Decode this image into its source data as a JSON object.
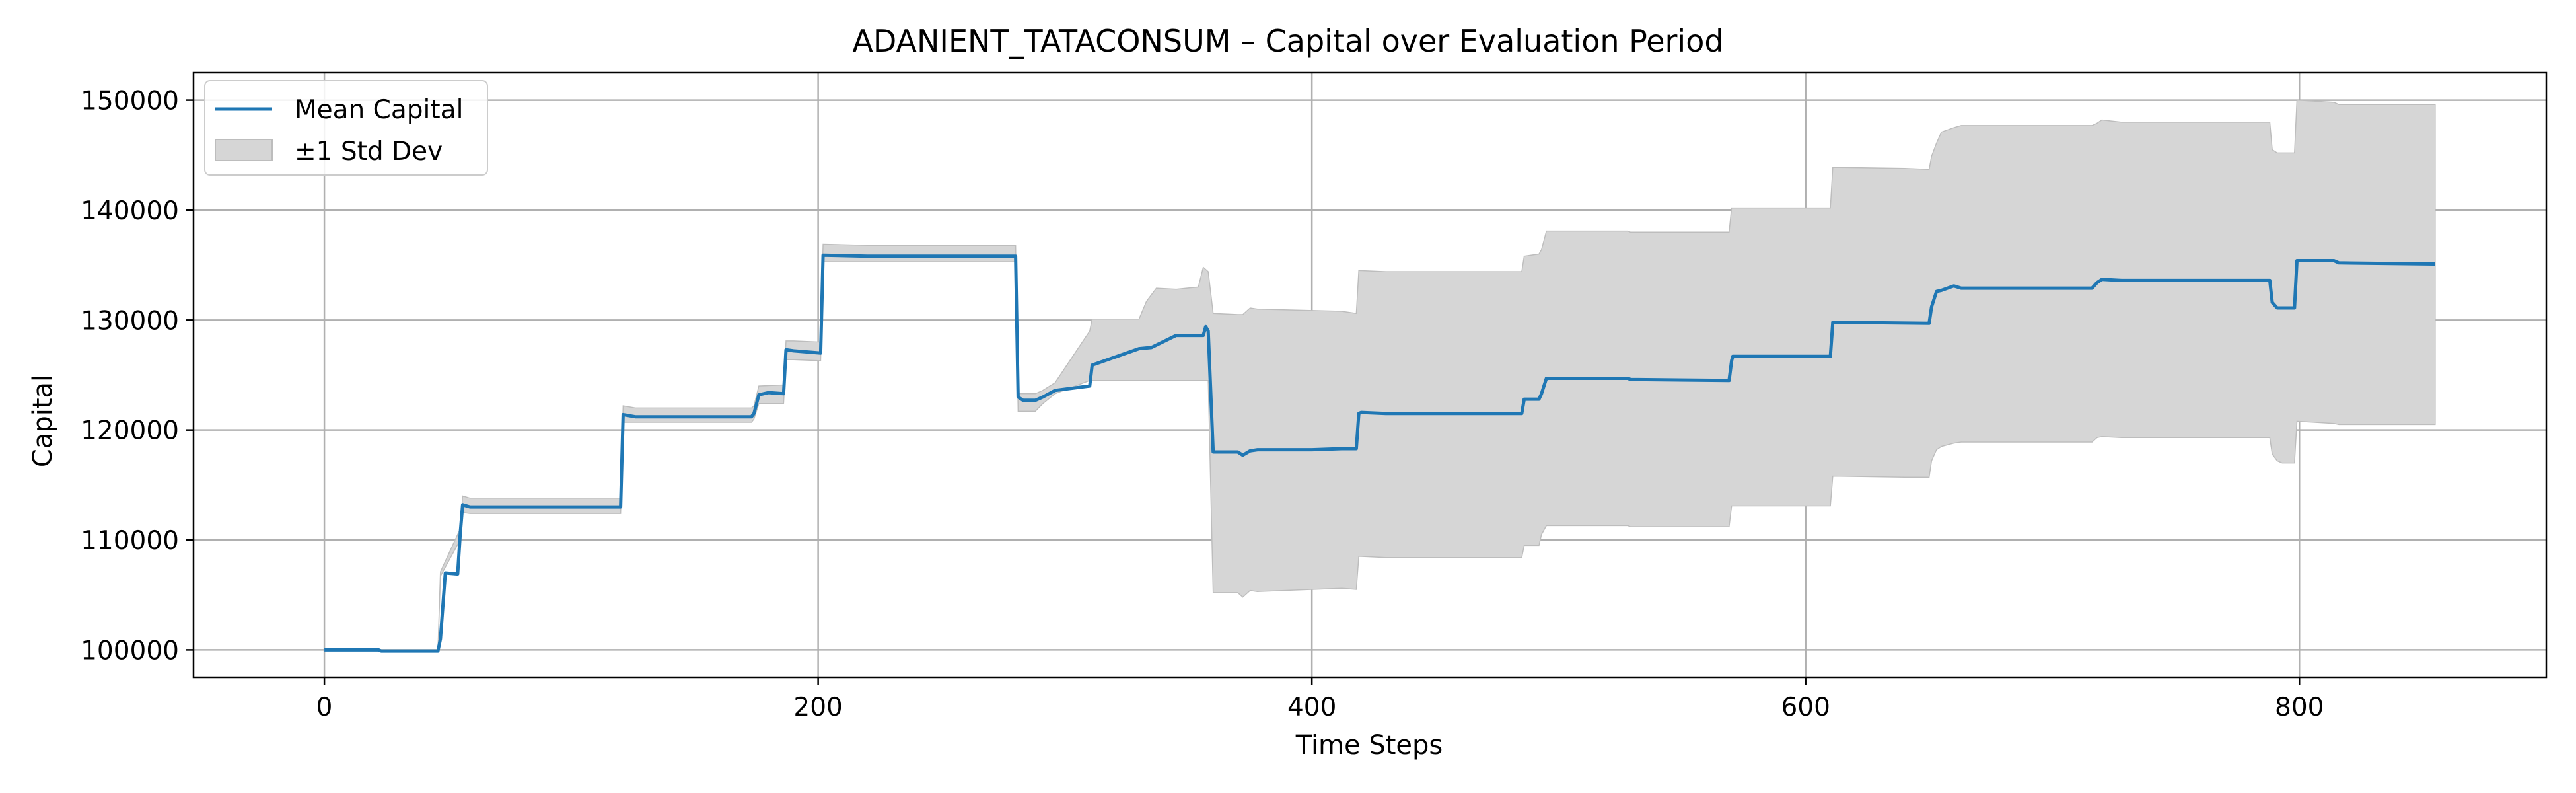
{
  "chart_data": {
    "type": "line",
    "title": "ADANIENT_TATACONSUM – Capital over Evaluation Period",
    "xlabel": "Time Steps",
    "ylabel": "Capital",
    "xlim": [
      -53,
      900
    ],
    "ylim": [
      97500,
      152500
    ],
    "xticks": [
      0,
      200,
      400,
      600,
      800
    ],
    "yticks": [
      100000,
      110000,
      120000,
      130000,
      140000,
      150000
    ],
    "grid": true,
    "legend": {
      "placement": "top-left",
      "entries": [
        "Mean Capital",
        "±1 Std Dev"
      ]
    },
    "colors": {
      "mean": "#1f77b4",
      "band": "#d6d6d6",
      "band_edge": "#bdbdbd",
      "grid": "#b0b0b0"
    },
    "series": [
      {
        "name": "Mean Capital",
        "x": [
          0,
          22,
          23,
          46,
          47,
          49,
          54,
          55,
          56,
          59,
          120,
          121,
          126,
          173,
          174,
          176,
          180,
          186,
          187,
          190,
          201,
          202,
          220,
          280,
          281,
          283,
          288,
          291,
          296,
          310,
          311,
          330,
          335,
          345,
          354,
          356,
          357,
          358,
          360,
          370,
          372,
          375,
          378,
          400,
          412,
          418,
          419,
          420,
          430,
          485,
          486,
          492,
          493,
          495,
          528,
          529,
          569,
          570,
          570.5,
          610,
          611,
          650,
          651,
          653,
          655,
          660,
          663,
          716,
          718,
          720,
          728,
          788,
          789,
          791,
          793,
          798,
          799,
          814,
          816,
          855
        ],
        "y": [
          100000,
          100000,
          99900,
          99900,
          101000,
          107000,
          106900,
          110500,
          113200,
          113000,
          113000,
          121400,
          121200,
          121200,
          121500,
          123200,
          123400,
          123300,
          127300,
          127200,
          127000,
          135900,
          135800,
          135800,
          123000,
          122700,
          122700,
          123000,
          123600,
          124000,
          125900,
          127400,
          127500,
          128600,
          128600,
          128600,
          129400,
          129000,
          118000,
          118000,
          117700,
          118100,
          118200,
          118200,
          118300,
          118300,
          121500,
          121600,
          121500,
          121500,
          122800,
          122800,
          123300,
          124700,
          124700,
          124600,
          124500,
          126300,
          126700,
          126700,
          129800,
          129700,
          131200,
          132600,
          132700,
          133100,
          132900,
          132900,
          133400,
          133700,
          133600,
          133600,
          131600,
          131100,
          131100,
          131100,
          135400,
          135400,
          135200,
          135100
        ]
      },
      {
        "name": "±1 Std Dev",
        "x": [
          0,
          46,
          47,
          55,
          56,
          59,
          120,
          121,
          126,
          173,
          174,
          176,
          186,
          187,
          190,
          201,
          202,
          220,
          280,
          281,
          283,
          288,
          291,
          296,
          310,
          311,
          330,
          333,
          337,
          345,
          354,
          356,
          358,
          360,
          370,
          372,
          375,
          378,
          412,
          418,
          419,
          420,
          430,
          485,
          486,
          492,
          493,
          495,
          528,
          529,
          569,
          570,
          610,
          611,
          640,
          650,
          651,
          653,
          655,
          660,
          663,
          716,
          718,
          720,
          728,
          788,
          789,
          791,
          793,
          798,
          799,
          814,
          816,
          855
        ],
        "lower": [
          100000,
          99800,
          106700,
          110000,
          112500,
          112400,
          112400,
          120700,
          120700,
          120700,
          121000,
          122400,
          122400,
          126400,
          126400,
          126300,
          135300,
          135300,
          135300,
          121700,
          121700,
          121700,
          122400,
          123300,
          124500,
          124500,
          124500,
          124500,
          124500,
          124500,
          124500,
          124500,
          124500,
          105200,
          105200,
          104800,
          105400,
          105300,
          105600,
          105500,
          108500,
          108500,
          108400,
          108400,
          109500,
          109500,
          110500,
          111300,
          111300,
          111200,
          111200,
          113100,
          113100,
          115800,
          115700,
          115700,
          117200,
          118200,
          118500,
          118800,
          118900,
          118900,
          119300,
          119400,
          119300,
          119300,
          117800,
          117200,
          117000,
          117000,
          120800,
          120600,
          120500,
          120500
        ],
        "upper": [
          100000,
          100000,
          107100,
          111000,
          114000,
          113800,
          113800,
          122200,
          122000,
          122000,
          122200,
          124000,
          124100,
          128100,
          128100,
          128000,
          136900,
          136800,
          136800,
          123300,
          123300,
          123300,
          123600,
          124300,
          129000,
          130100,
          130100,
          131700,
          132900,
          132800,
          133000,
          134800,
          134400,
          130600,
          130500,
          130500,
          131100,
          131000,
          130800,
          130600,
          134500,
          134500,
          134400,
          134400,
          135800,
          136000,
          136400,
          138100,
          138100,
          138000,
          138000,
          140200,
          140200,
          143900,
          143800,
          143700,
          144900,
          146100,
          147100,
          147500,
          147700,
          147700,
          147900,
          148200,
          148000,
          148000,
          145500,
          145200,
          145200,
          145200,
          150000,
          149800,
          149600,
          149600
        ]
      }
    ]
  }
}
